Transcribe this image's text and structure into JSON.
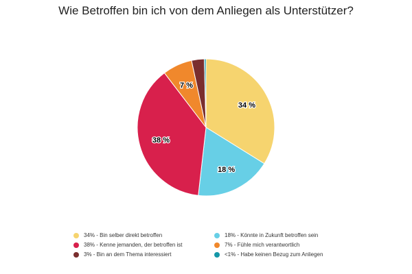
{
  "chart_data": {
    "type": "pie",
    "title": "Wie Betroffen bin ich von dem Anliegen als Unterstützer?",
    "slices": [
      {
        "label": "34% - Bin selber direkt betroffen",
        "value": 34,
        "data_label": "34 %",
        "color": "#F6D46F"
      },
      {
        "label": "18% - Könnte in Zukunft betroffen sein",
        "value": 18,
        "data_label": "18 %",
        "color": "#67CFE6"
      },
      {
        "label": "38% - Kenne jemanden, der betroffen ist",
        "value": 38,
        "data_label": "38 %",
        "color": "#D8204C"
      },
      {
        "label": "7% - Fühle mich verantwortlich",
        "value": 7,
        "data_label": "7 %",
        "color": "#F0882C"
      },
      {
        "label": "3% - Bin an dem Thema interessiert",
        "value": 3,
        "data_label": "",
        "color": "#7A2E2E"
      },
      {
        "label": "<1% - Habe keinen Bezug zum Anliegen",
        "value": 0.4,
        "data_label": "",
        "color": "#1597A8"
      }
    ],
    "legend_placement": "bottom"
  }
}
